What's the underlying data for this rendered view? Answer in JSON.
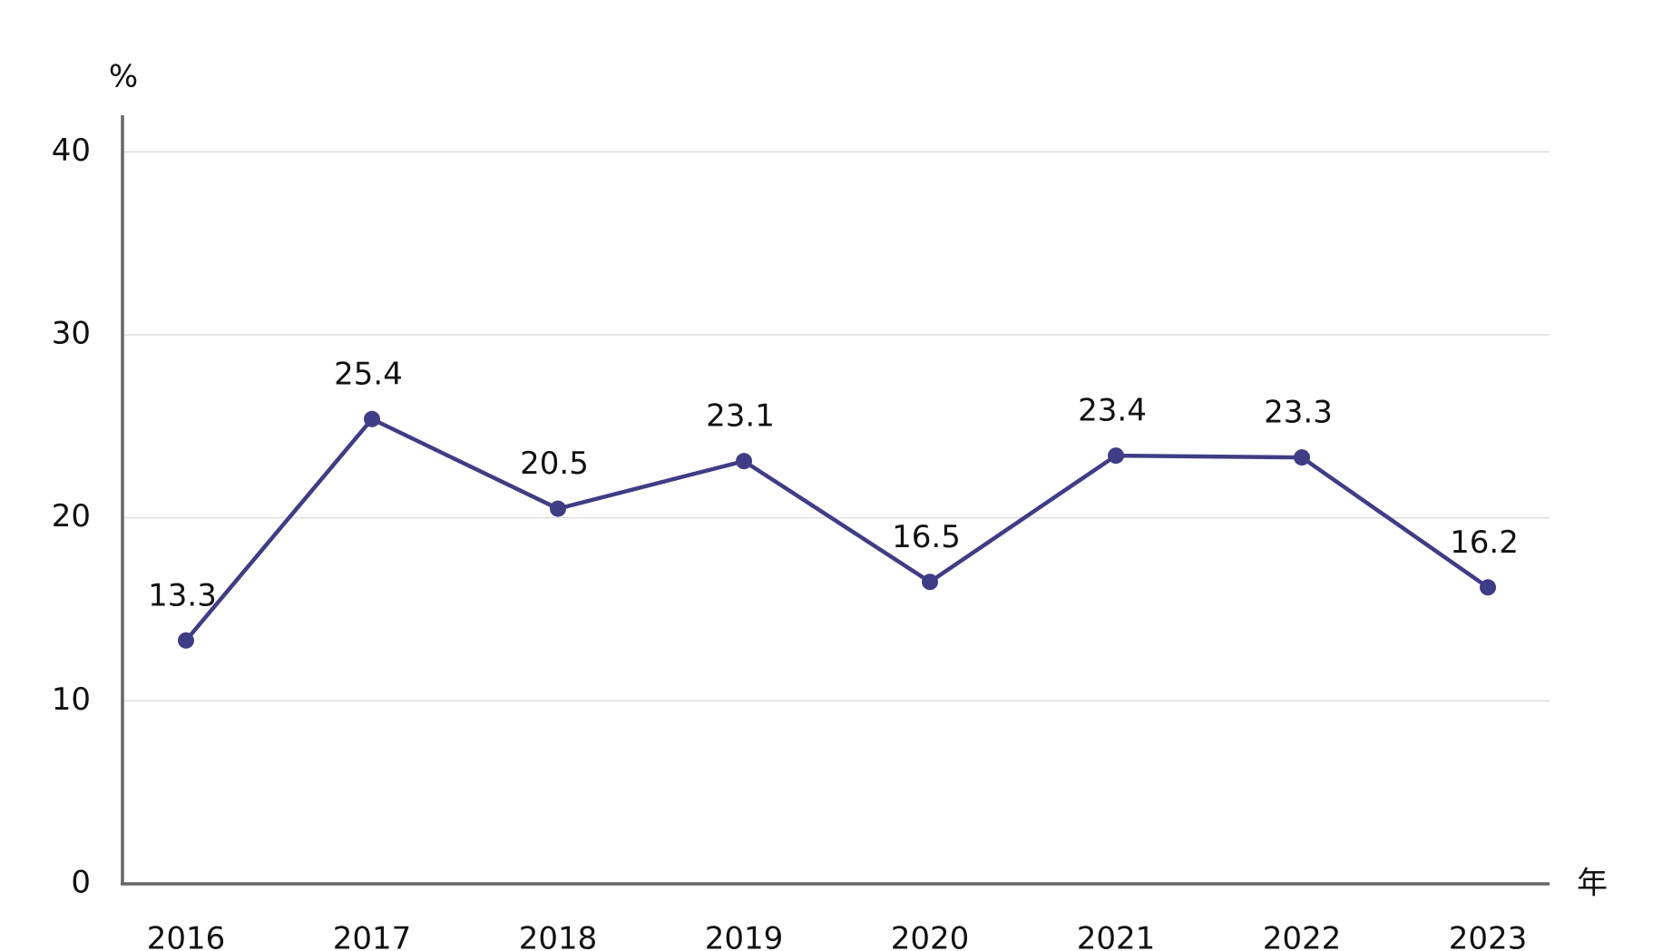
{
  "chart_data": {
    "type": "line",
    "y_label": "%",
    "x_label": "年",
    "categories": [
      "2016",
      "2017",
      "2018",
      "2019",
      "2020",
      "2021",
      "2022",
      "2023"
    ],
    "series": [
      {
        "color": "#3f3d85",
        "values": [
          13.3,
          25.4,
          20.5,
          23.1,
          16.5,
          23.4,
          23.3,
          16.2
        ]
      }
    ],
    "ylim": [
      0,
      42
    ],
    "yticks": [
      0,
      10,
      20,
      30,
      40
    ],
    "grid": true
  }
}
